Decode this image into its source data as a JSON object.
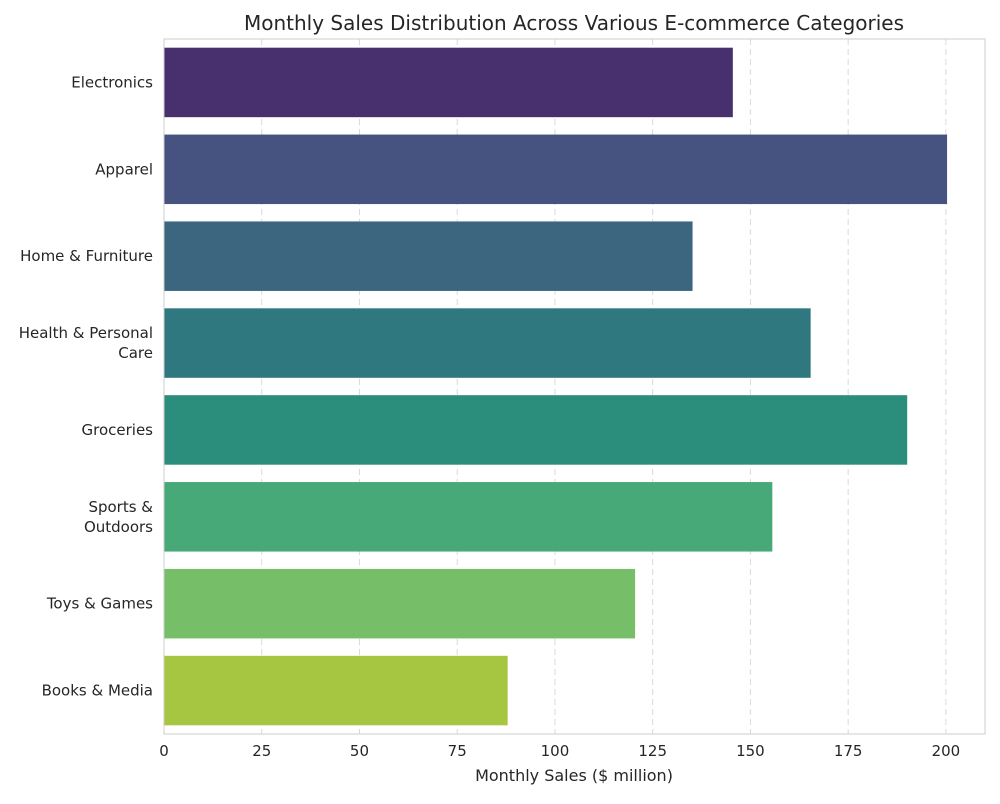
{
  "chart_data": {
    "type": "bar",
    "orientation": "horizontal",
    "title": "Monthly Sales Distribution Across Various E-commerce Categories",
    "xlabel": "Monthly Sales ($ million)",
    "ylabel": "",
    "xlim": [
      0,
      210
    ],
    "xticks": [
      0,
      25,
      50,
      75,
      100,
      125,
      150,
      175,
      200
    ],
    "grid": "x-dashed",
    "categories": [
      [
        "Electronics"
      ],
      [
        "Apparel"
      ],
      [
        "Home & Furniture"
      ],
      [
        "Health & Personal",
        "Care"
      ],
      [
        "Groceries"
      ],
      [
        "Sports &",
        "Outdoors"
      ],
      [
        "Toys & Games"
      ],
      [
        "Books & Media"
      ]
    ],
    "values": [
      145.5,
      200.3,
      135.2,
      165.4,
      190.1,
      155.6,
      120.5,
      87.9
    ],
    "colors": [
      "#482f6e",
      "#46527f",
      "#3c6680",
      "#307880",
      "#2b8d7c",
      "#47a977",
      "#76bf68",
      "#a6c641"
    ]
  }
}
